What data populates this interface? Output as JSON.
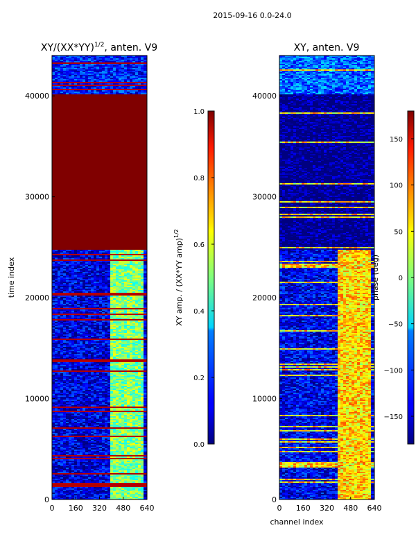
{
  "figure_title": "2015-09-16 0.0-24.0",
  "chart_data": [
    {
      "type": "heatmap",
      "title": "XY/(XX*YY)1/2, anten. V9",
      "title_main": "XY/(XX*YY)",
      "title_sup": "1/2",
      "title_tail": ", anten. V9",
      "xlabel": "",
      "ylabel": "time index",
      "xlim": [
        0,
        640
      ],
      "ylim": [
        0,
        44000
      ],
      "xticks": [
        0,
        160,
        320,
        480,
        640
      ],
      "yticks": [
        0,
        10000,
        20000,
        30000,
        40000
      ],
      "colorbar": {
        "label_main": "XY amp. / (XX*YY amp)",
        "label_sup": "1/2",
        "range": [
          0.0,
          1.0
        ],
        "ticks": [
          "0.0",
          "0.2",
          "0.4",
          "0.6",
          "0.8",
          "1.0"
        ],
        "tick_values": [
          0.0,
          0.2,
          0.4,
          0.6,
          0.8,
          1.0
        ]
      },
      "regions": [
        {
          "y_from": 0,
          "y_to": 24800,
          "x_from": 0,
          "x_to": 640,
          "value": 0.1,
          "desc": "low amplitude"
        },
        {
          "y_from": 0,
          "y_to": 24800,
          "x_from": 390,
          "x_to": 610,
          "value": 0.5,
          "desc": "moderate amplitude band"
        },
        {
          "y_from": 24800,
          "y_to": 40100,
          "x_from": 0,
          "x_to": 640,
          "value": 1.0,
          "desc": "saturated"
        },
        {
          "y_from": 40100,
          "y_to": 44000,
          "x_from": 0,
          "x_to": 640,
          "value": 0.15,
          "desc": "low amplitude with bands"
        }
      ]
    },
    {
      "type": "heatmap",
      "title": "XY, anten. V9",
      "xlabel": "channel index",
      "ylabel": "",
      "xlim": [
        0,
        640
      ],
      "ylim": [
        0,
        44000
      ],
      "xticks": [
        0,
        160,
        320,
        480,
        640
      ],
      "yticks": [
        0,
        10000,
        20000,
        30000,
        40000
      ],
      "colorbar": {
        "label": "phase (deg)",
        "range": [
          -180,
          180
        ],
        "ticks": [
          "−150",
          "−100",
          "−50",
          "0",
          "50",
          "100",
          "150"
        ],
        "tick_values": [
          -150,
          -100,
          -50,
          0,
          50,
          100,
          150
        ]
      },
      "regions": [
        {
          "y_from": 0,
          "y_to": 24800,
          "x_from": 0,
          "x_to": 640,
          "value": -140,
          "desc": "mostly blue phase"
        },
        {
          "y_from": 0,
          "y_to": 24800,
          "x_from": 400,
          "x_to": 610,
          "value": 60,
          "desc": "warm phase band"
        },
        {
          "y_from": 24800,
          "y_to": 40100,
          "x_from": 0,
          "x_to": 640,
          "value": -180,
          "desc": "constant dark blue"
        },
        {
          "y_from": 40100,
          "y_to": 44000,
          "x_from": 0,
          "x_to": 640,
          "value": -100,
          "desc": "mixed phase"
        }
      ]
    }
  ]
}
